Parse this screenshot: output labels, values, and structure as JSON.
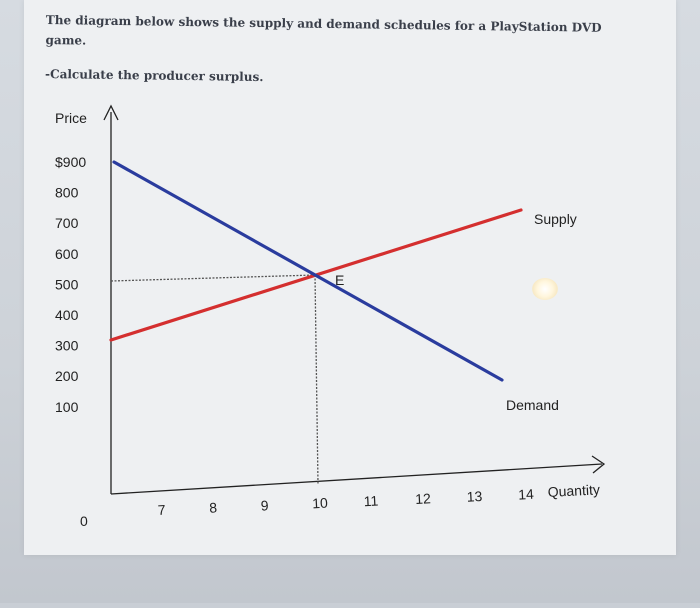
{
  "question": {
    "line1": "The diagram below shows the supply and demand schedules for a PlayStation DVD",
    "line2": "game.",
    "task": "-Calculate the producer surplus."
  },
  "chart_data": {
    "type": "line",
    "xlabel": "Quantity",
    "ylabel": "Price",
    "x_ticks": [
      "7",
      "8",
      "9",
      "10",
      "11",
      "12",
      "13",
      "14"
    ],
    "y_ticks": [
      "$900",
      "800",
      "700",
      "600",
      "500",
      "400",
      "300",
      "200",
      "100"
    ],
    "origin_label": "0",
    "xlim": [
      6,
      15
    ],
    "ylim": [
      0,
      1000
    ],
    "series": [
      {
        "name": "Supply",
        "color": "#d42f2f",
        "points": [
          [
            6,
            300
          ],
          [
            14,
            700
          ]
        ]
      },
      {
        "name": "Demand",
        "color": "#2a3c9e",
        "points": [
          [
            6,
            900
          ],
          [
            13.7,
            150
          ]
        ]
      }
    ],
    "equilibrium": {
      "label": "E",
      "x": 10,
      "y": 500
    },
    "grid": false
  }
}
